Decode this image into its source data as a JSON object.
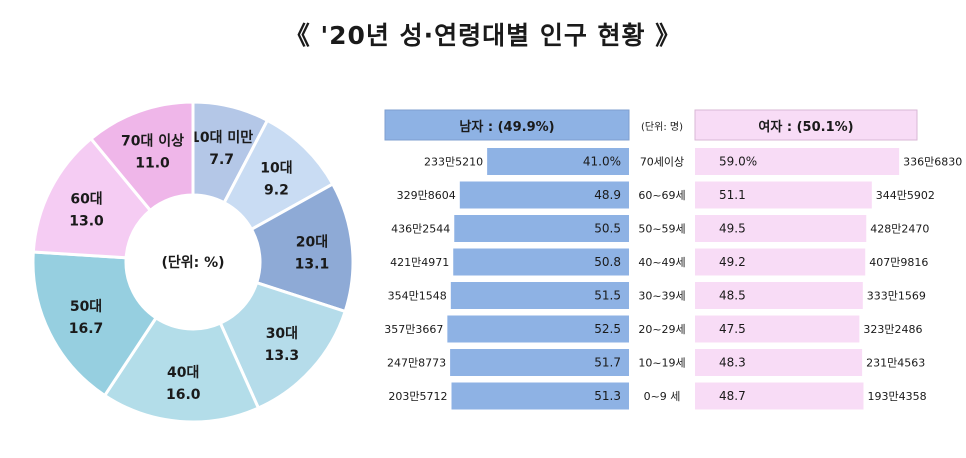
{
  "title": "《 '20년 성·연령대별 인구 현황 》",
  "chart_data": [
    {
      "type": "pie",
      "subtype": "donut",
      "center_label": "(단위: %)",
      "slices": [
        {
          "label": "10대 미만",
          "value": 7.7,
          "display": "7.7",
          "color": "#b4c7e7"
        },
        {
          "label": "10대",
          "value": 9.2,
          "display": "9.2",
          "color": "#c9dcf3"
        },
        {
          "label": "20대",
          "value": 13.1,
          "display": "13.1",
          "color": "#8eaad6"
        },
        {
          "label": "30대",
          "value": 13.3,
          "display": "13.3",
          "color": "#b5dcea"
        },
        {
          "label": "40대",
          "value": 16.0,
          "display": "16.0",
          "color": "#b3dde9"
        },
        {
          "label": "50대",
          "value": 16.7,
          "display": "16.7",
          "color": "#96cfe0"
        },
        {
          "label": "60대",
          "value": 13.0,
          "display": "13.0",
          "color": "#f5ccf3"
        },
        {
          "label": "70대 이상",
          "value": 11.0,
          "display": "11.0",
          "color": "#efb6e9"
        }
      ]
    },
    {
      "type": "bar",
      "subtype": "population-pyramid",
      "unit_label": "(단위: 명)",
      "male_header": "남자 : (49.9%)",
      "female_header": "여자 : (50.1%)",
      "male_color": "#8eb2e4",
      "female_color": "#f8dcf6",
      "rows": [
        {
          "age": "70세이상",
          "male_count": "233만5210",
          "male_pct": 41.0,
          "male_pct_label": "41.0%",
          "female_count": "336만6830",
          "female_pct": 59.0,
          "female_pct_label": "59.0%"
        },
        {
          "age": "60~69세",
          "male_count": "329만8604",
          "male_pct": 48.9,
          "male_pct_label": "48.9",
          "female_count": "344만5902",
          "female_pct": 51.1,
          "female_pct_label": "51.1"
        },
        {
          "age": "50~59세",
          "male_count": "436만2544",
          "male_pct": 50.5,
          "male_pct_label": "50.5",
          "female_count": "428만2470",
          "female_pct": 49.5,
          "female_pct_label": "49.5"
        },
        {
          "age": "40~49세",
          "male_count": "421만4971",
          "male_pct": 50.8,
          "male_pct_label": "50.8",
          "female_count": "407만9816",
          "female_pct": 49.2,
          "female_pct_label": "49.2"
        },
        {
          "age": "30~39세",
          "male_count": "354만1548",
          "male_pct": 51.5,
          "male_pct_label": "51.5",
          "female_count": "333만1569",
          "female_pct": 48.5,
          "female_pct_label": "48.5"
        },
        {
          "age": "20~29세",
          "male_count": "357만3667",
          "male_pct": 52.5,
          "male_pct_label": "52.5",
          "female_count": "323만2486",
          "female_pct": 47.5,
          "female_pct_label": "47.5"
        },
        {
          "age": "10~19세",
          "male_count": "247만8773",
          "male_pct": 51.7,
          "male_pct_label": "51.7",
          "female_count": "231만4563",
          "female_pct": 48.3,
          "female_pct_label": "48.3"
        },
        {
          "age": "0~9 세",
          "male_count": "203만5712",
          "male_pct": 51.3,
          "male_pct_label": "51.3",
          "female_count": "193만4358",
          "female_pct": 48.7,
          "female_pct_label": "48.7"
        }
      ]
    }
  ]
}
